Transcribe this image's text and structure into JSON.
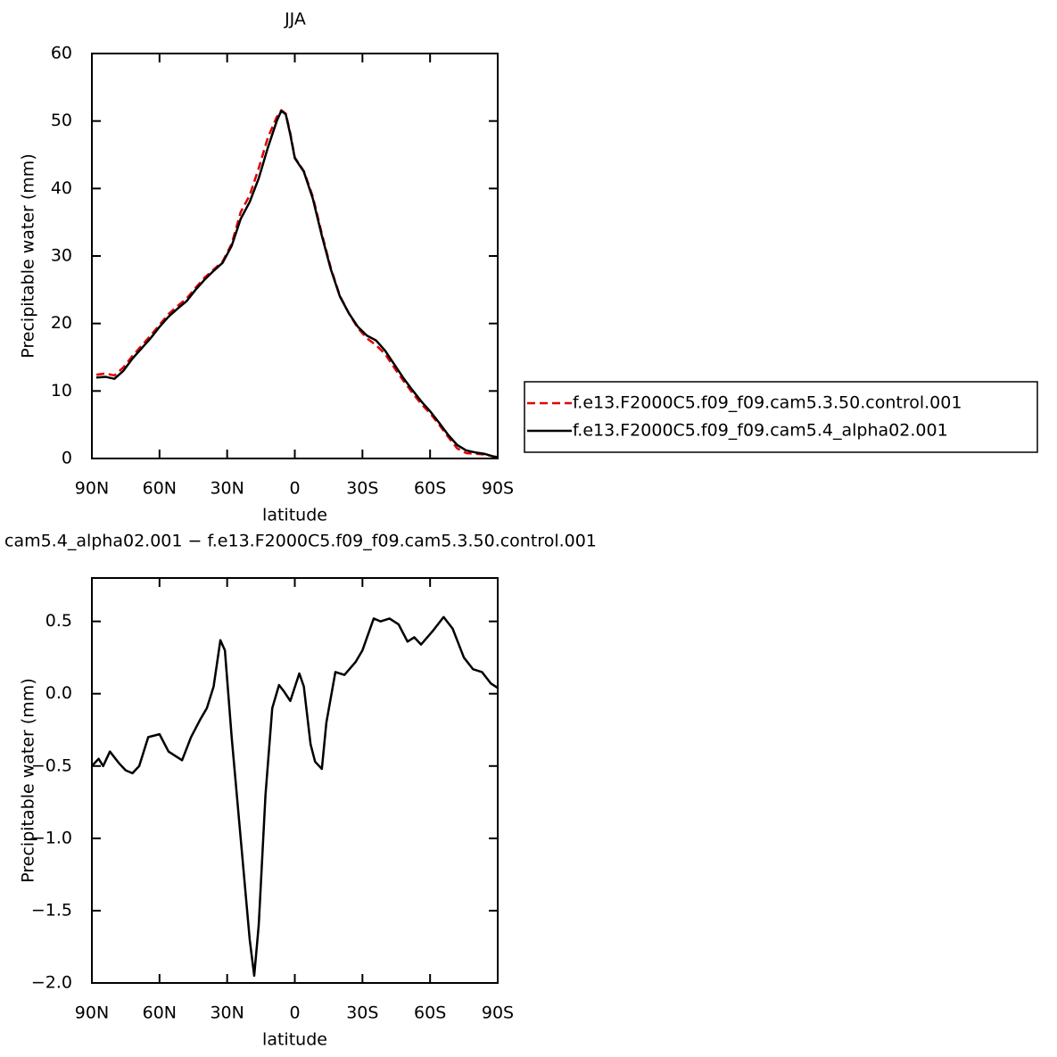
{
  "chart_data": [
    {
      "type": "line",
      "title": "JJA",
      "ylabel": "Precipitable water (mm)",
      "xlabel": "latitude",
      "xlim": [
        90,
        -90
      ],
      "ylim": [
        0,
        60
      ],
      "xticks": [
        {
          "value": 90,
          "label": "90N"
        },
        {
          "value": 60,
          "label": "60N"
        },
        {
          "value": 30,
          "label": "30N"
        },
        0,
        {
          "value": -30,
          "label": "30S"
        },
        {
          "value": -60,
          "label": "60S"
        },
        {
          "value": -90,
          "label": "90S"
        }
      ],
      "yticks": [
        0,
        10,
        20,
        30,
        40,
        50,
        60
      ],
      "legend": "right",
      "x": [
        88,
        84,
        80,
        76,
        72,
        68,
        64,
        60,
        56,
        52,
        48,
        44,
        40,
        36,
        32,
        28,
        24,
        20,
        16,
        12,
        8,
        6,
        4,
        2,
        0,
        -4,
        -8,
        -12,
        -16,
        -20,
        -24,
        -28,
        -32,
        -36,
        -40,
        -44,
        -48,
        -52,
        -56,
        -60,
        -64,
        -68,
        -72,
        -76,
        -80,
        -84,
        -88,
        -90
      ],
      "series": [
        {
          "name": "f.e13.F2000C5.f09_f09.cam5.3.50.control.001",
          "color": "#e00000",
          "dash": "dashed",
          "values": [
            12.4,
            12.6,
            12.3,
            13.5,
            15.2,
            16.7,
            18.2,
            19.8,
            21.4,
            22.6,
            23.7,
            25.3,
            26.8,
            28.0,
            29.2,
            31.8,
            36.5,
            39.0,
            43.0,
            47.5,
            50.6,
            51.6,
            51.1,
            48.2,
            44.6,
            42.6,
            38.8,
            33.3,
            28.2,
            24.1,
            21.5,
            19.3,
            17.8,
            16.8,
            15.5,
            13.5,
            11.6,
            9.8,
            8.1,
            6.7,
            5.0,
            3.2,
            1.5,
            0.8,
            0.7,
            0.6,
            0.3,
            0.2
          ]
        },
        {
          "name": "f.e13.F2000C5.f09_f09.cam5.4_alpha02.001",
          "color": "#000000",
          "dash": "solid",
          "values": [
            12.0,
            12.1,
            11.8,
            13.0,
            14.8,
            16.3,
            17.8,
            19.5,
            21.0,
            22.2,
            23.3,
            25.0,
            26.5,
            27.8,
            29.0,
            31.5,
            35.5,
            38.0,
            41.5,
            46.0,
            50.0,
            51.5,
            51.0,
            48.0,
            44.5,
            42.5,
            38.5,
            33.0,
            28.0,
            24.0,
            21.5,
            19.5,
            18.2,
            17.5,
            16.0,
            14.0,
            12.0,
            10.2,
            8.5,
            7.0,
            5.3,
            3.5,
            2.0,
            1.2,
            0.9,
            0.7,
            0.3,
            0.2
          ]
        }
      ]
    },
    {
      "type": "line",
      "title": "cam5.4_alpha02.001 − f.e13.F2000C5.f09_f09.cam5.3.50.control.001",
      "ylabel": "Precipitable water (mm)",
      "xlabel": "latitude",
      "xlim": [
        90,
        -90
      ],
      "ylim": [
        -2.0,
        0.8
      ],
      "xticks": [
        {
          "value": 90,
          "label": "90N"
        },
        {
          "value": 60,
          "label": "60N"
        },
        {
          "value": 30,
          "label": "30N"
        },
        0,
        {
          "value": -30,
          "label": "30S"
        },
        {
          "value": -60,
          "label": "60S"
        },
        {
          "value": -90,
          "label": "90S"
        }
      ],
      "yticks": [
        {
          "value": 0.5,
          "label": "0.5"
        },
        {
          "value": 0,
          "label": "0.0"
        },
        {
          "value": -0.5,
          "label": "−0.5"
        },
        {
          "value": -1.0,
          "label": "−1.0"
        },
        {
          "value": -1.5,
          "label": "−1.5"
        },
        {
          "value": -2.0,
          "label": "−2.0"
        }
      ],
      "x": [
        90,
        87,
        85,
        82,
        78,
        75,
        72,
        69,
        65,
        60,
        56,
        50,
        46,
        42,
        39,
        36,
        33,
        31,
        28,
        24,
        20,
        18,
        16,
        13,
        10,
        7,
        5,
        2,
        -2,
        -4,
        -7,
        -9,
        -12,
        -14,
        -18,
        -22,
        -27,
        -30,
        -35,
        -38,
        -42,
        -46,
        -50,
        -53,
        -56,
        -61,
        -66,
        -70,
        -75,
        -79,
        -83,
        -87,
        -90
      ],
      "color": "#000000",
      "values": [
        -0.5,
        -0.45,
        -0.5,
        -0.4,
        -0.48,
        -0.53,
        -0.55,
        -0.5,
        -0.3,
        -0.28,
        -0.4,
        -0.46,
        -0.3,
        -0.18,
        -0.1,
        0.05,
        0.37,
        0.3,
        -0.3,
        -1.0,
        -1.7,
        -1.95,
        -1.6,
        -0.7,
        -0.1,
        0.06,
        0.02,
        -0.05,
        0.14,
        0.05,
        -0.35,
        -0.47,
        -0.52,
        -0.2,
        0.15,
        0.13,
        0.22,
        0.3,
        0.52,
        0.5,
        0.52,
        0.48,
        0.36,
        0.39,
        0.34,
        0.43,
        0.53,
        0.45,
        0.25,
        0.17,
        0.15,
        0.07,
        0.04
      ]
    }
  ]
}
